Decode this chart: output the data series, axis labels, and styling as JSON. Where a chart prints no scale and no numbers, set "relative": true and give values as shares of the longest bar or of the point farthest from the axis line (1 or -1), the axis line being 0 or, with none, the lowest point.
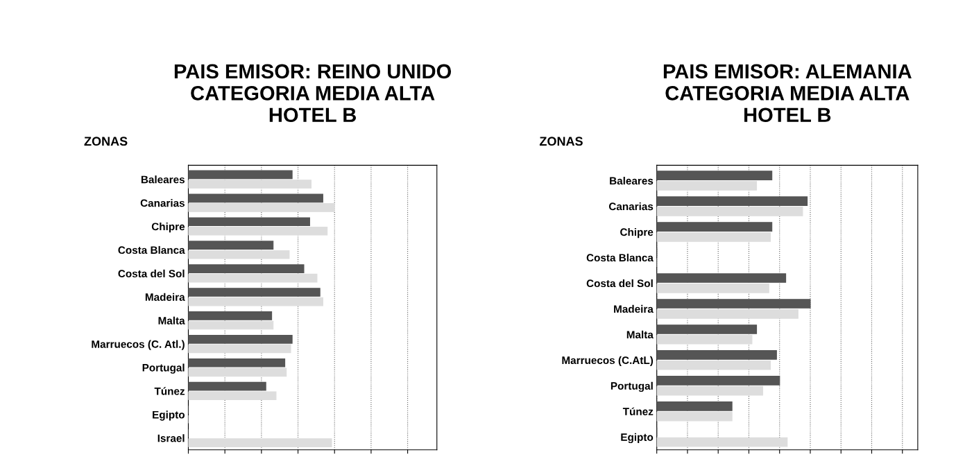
{
  "chart_data": [
    {
      "type": "bar",
      "orientation": "horizontal",
      "relative": true,
      "title": "PAIS EMISOR: REINO UNIDO\nCATEGORIA MEDIA ALTA\nHOTEL B",
      "ylabel": "ZONAS",
      "grid": "x",
      "tick_labels": "y",
      "categories": [
        "Baleares",
        "Canarias",
        "Chipre",
        "Costa Blanca",
        "Costa del Sol",
        "Madeira",
        "Malta",
        "Marruecos (C. Atl.)",
        "Portugal",
        "Túnez",
        "Egipto",
        "Israel"
      ],
      "series": [
        {
          "color": "#555555",
          "values": [
            0.71,
            0.92,
            0.83,
            0.58,
            0.79,
            0.9,
            0.57,
            0.71,
            0.66,
            0.53,
            0,
            0
          ]
        },
        {
          "color": "#dddddd",
          "values": [
            0.84,
            1.0,
            0.95,
            0.69,
            0.88,
            0.92,
            0.58,
            0.7,
            0.67,
            0.6,
            0,
            0.98
          ]
        }
      ]
    },
    {
      "type": "bar",
      "orientation": "horizontal",
      "relative": true,
      "title": "PAIS EMISOR: ALEMANIA\nCATEGORIA MEDIA ALTA\nHOTEL B",
      "ylabel": "ZONAS",
      "grid": "x",
      "tick_labels": "y",
      "categories": [
        "Baleares",
        "Canarias",
        "Chipre",
        "Costa Blanca",
        "Costa del Sol",
        "Madeira",
        "Malta",
        "Marruecos (C.AtL)",
        "Portugal",
        "Túnez",
        "Egipto"
      ],
      "series": [
        {
          "color": "#555555",
          "values": [
            0.75,
            0.98,
            0.75,
            0,
            0.84,
            1.0,
            0.65,
            0.78,
            0.8,
            0.49,
            0
          ]
        },
        {
          "color": "#dddddd",
          "values": [
            0.65,
            0.95,
            0.74,
            0,
            0.73,
            0.92,
            0.62,
            0.74,
            0.69,
            0.49,
            0.85
          ]
        }
      ]
    }
  ]
}
